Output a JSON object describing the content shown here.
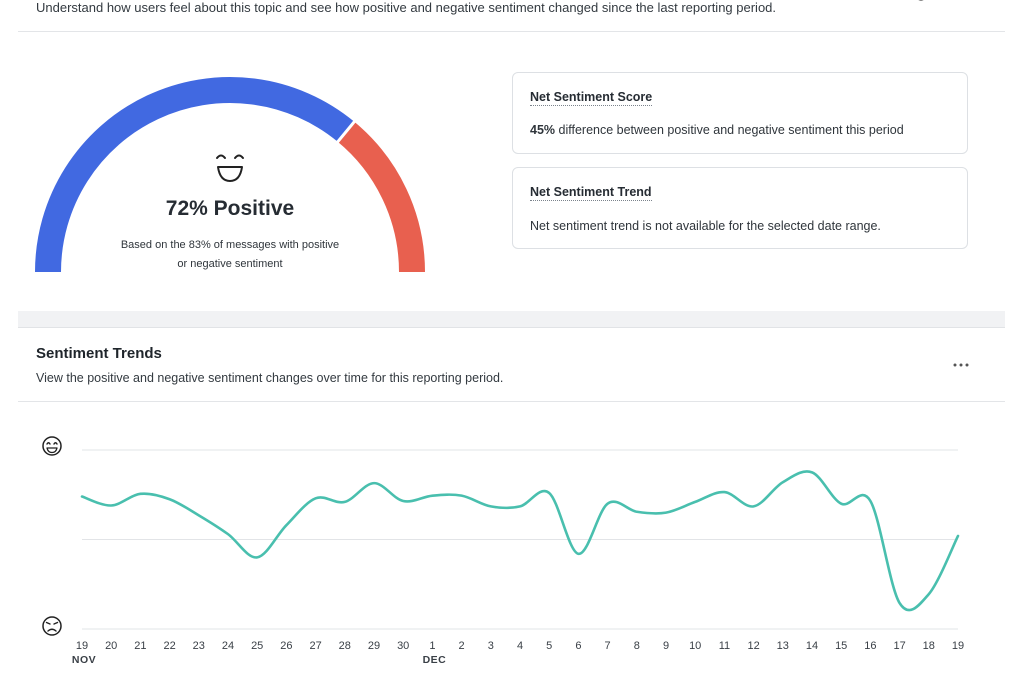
{
  "header": {
    "description": "Understand how users feel about this topic and see how positive and negative sentiment changed since the last reporting period."
  },
  "gauge": {
    "positive_fraction": 0.72,
    "value_text": "72% Positive",
    "caption_line1": "Based on the 83% of messages with positive",
    "caption_line2": "or negative sentiment",
    "colors": {
      "positive": "#4169e1",
      "negative": "#e8604f"
    }
  },
  "cards": {
    "score": {
      "title": "Net Sentiment Score",
      "value": "45%",
      "text": "difference between positive and negative sentiment this period"
    },
    "trend": {
      "title": "Net Sentiment Trend",
      "text": "Net sentiment trend is not available for the selected date range."
    }
  },
  "trends": {
    "title": "Sentiment Trends",
    "description": "View the positive and negative sentiment changes over time for this reporting period.",
    "more_label": "···"
  },
  "chart_data": {
    "type": "line",
    "x": [
      "19",
      "20",
      "21",
      "22",
      "23",
      "24",
      "25",
      "26",
      "27",
      "28",
      "29",
      "30",
      "1",
      "2",
      "3",
      "4",
      "5",
      "6",
      "7",
      "8",
      "9",
      "10",
      "11",
      "12",
      "13",
      "14",
      "15",
      "16",
      "17",
      "18",
      "19"
    ],
    "month_labels": [
      {
        "label": "NOV",
        "index": 0
      },
      {
        "label": "DEC",
        "index": 12
      }
    ],
    "values": [
      0.48,
      0.38,
      0.51,
      0.45,
      0.27,
      0.06,
      -0.2,
      0.16,
      0.46,
      0.42,
      0.63,
      0.43,
      0.49,
      0.49,
      0.37,
      0.37,
      0.52,
      -0.16,
      0.4,
      0.31,
      0.3,
      0.42,
      0.53,
      0.37,
      0.64,
      0.75,
      0.4,
      0.43,
      -0.71,
      -0.61,
      0.04
    ],
    "ylim": [
      -1,
      1
    ],
    "y_icons": {
      "top": "smiling-face-icon",
      "bottom": "frowning-face-icon"
    },
    "grid": true,
    "color": "#49bfae"
  }
}
